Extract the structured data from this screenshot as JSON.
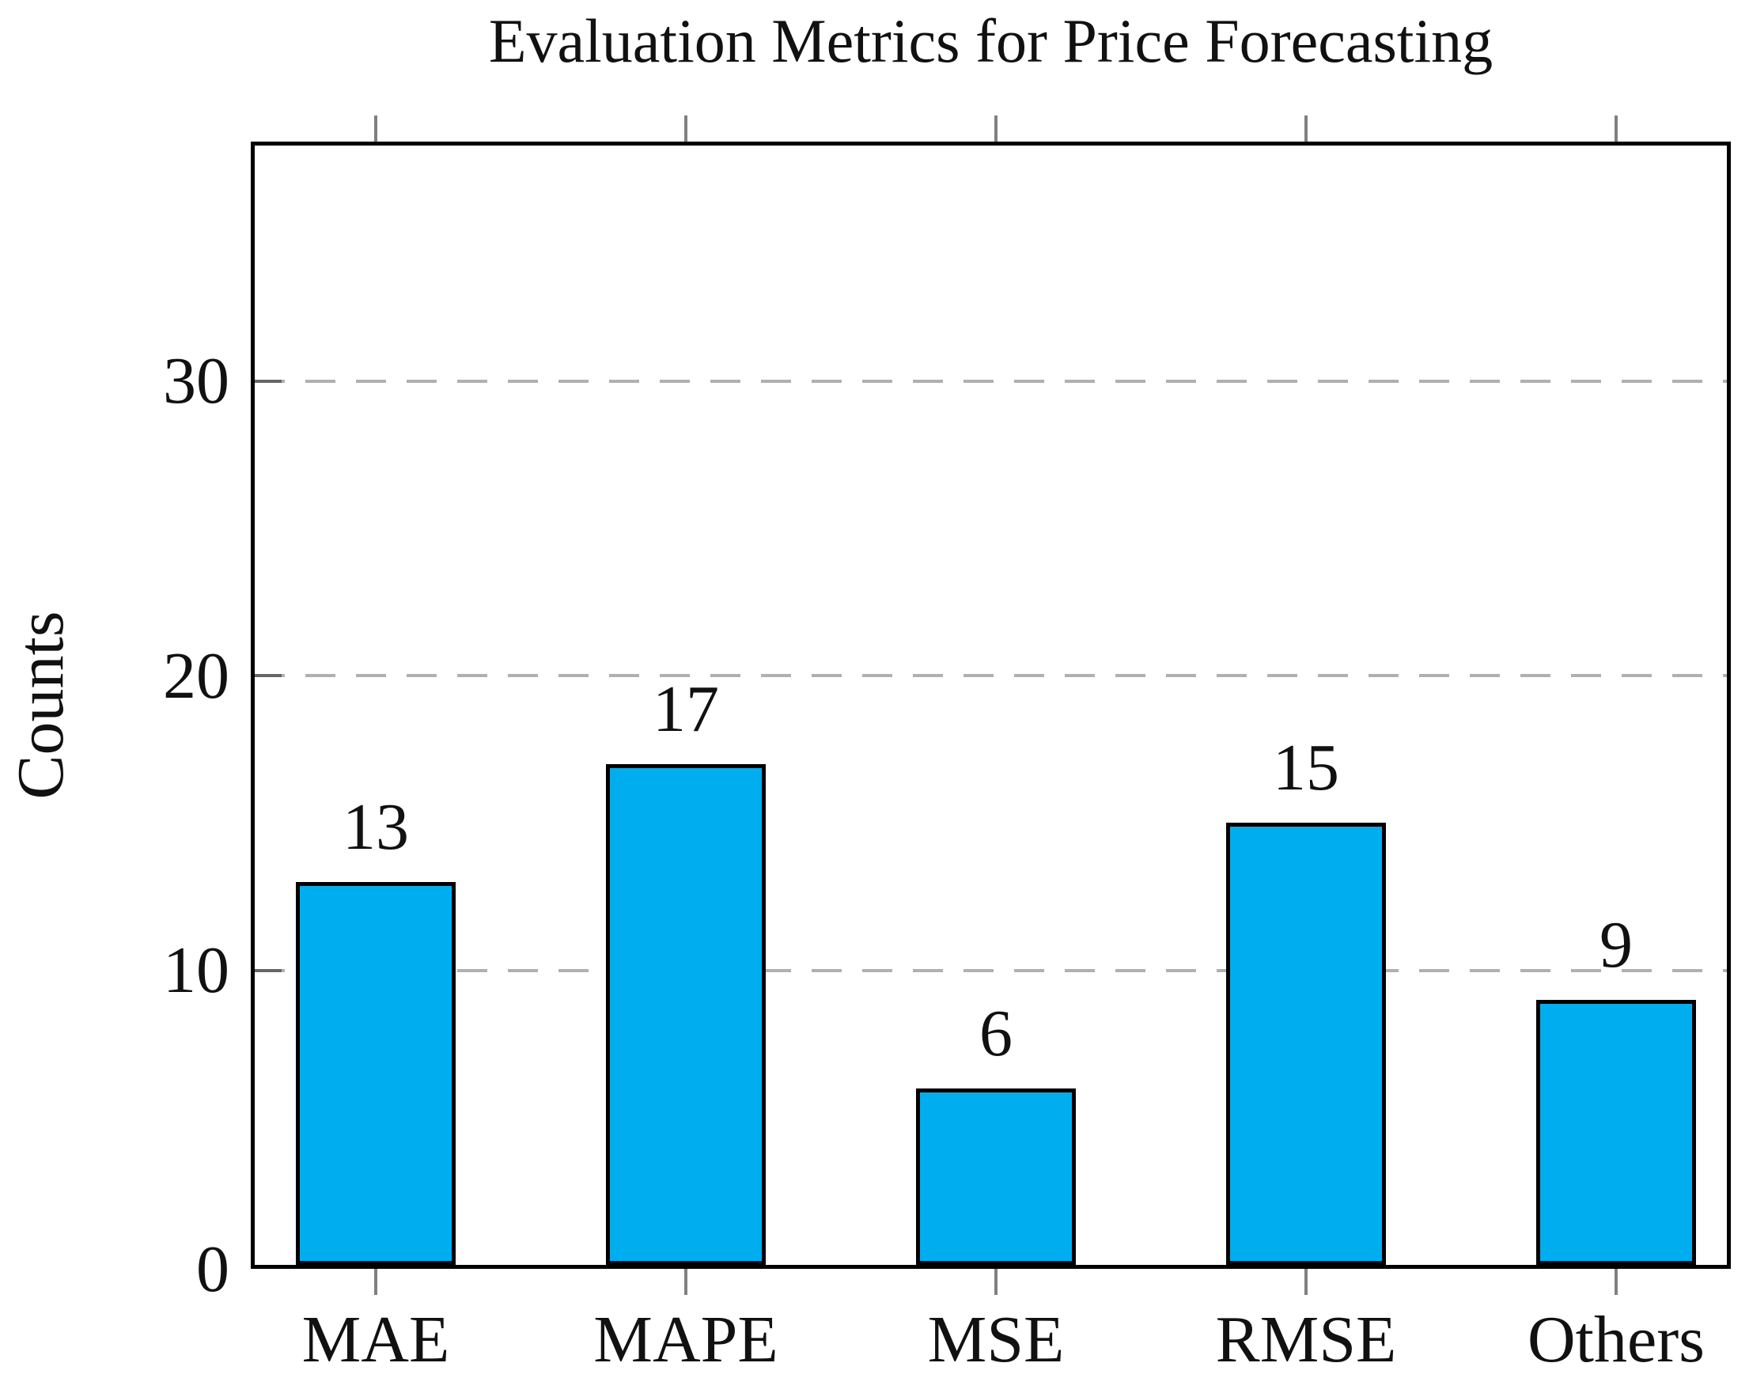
{
  "chart_data": {
    "type": "bar",
    "title": "Evaluation Metrics for Price Forecasting",
    "xlabel": "",
    "ylabel": "Counts",
    "categories": [
      "MAE",
      "MAPE",
      "MSE",
      "RMSE",
      "Others"
    ],
    "values": [
      13,
      17,
      6,
      15,
      9
    ],
    "bar_value_labels": [
      "13",
      "17",
      "6",
      "15",
      "9"
    ],
    "ylim": [
      0,
      38
    ],
    "yticks": [
      0,
      10,
      20,
      30
    ],
    "grid": "horizontal dashed gridlines at 10, 20 and 30",
    "legend": "none",
    "bar_fill_color": "#00AEEF",
    "bar_border_color": "#000000",
    "gridline_color": "#b0b0b0",
    "tick_color": "#808080",
    "axis_color": "#000000",
    "text_color": "#111111"
  }
}
